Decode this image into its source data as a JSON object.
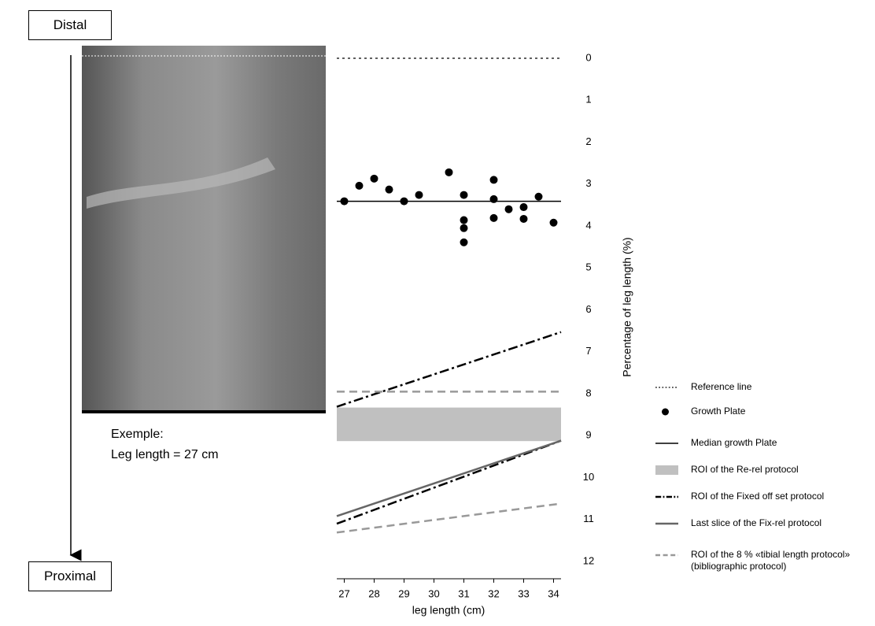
{
  "chart_data": {
    "type": "roi-line",
    "x_label": "leg length (cm)",
    "y_label": "Percentage of leg length (%)",
    "xlim": [
      26.75,
      34.25
    ],
    "ylim": [
      0,
      12
    ],
    "xticks": [
      27,
      28,
      29,
      30,
      31,
      32,
      33,
      34
    ],
    "yticks": [
      0,
      1,
      2,
      3,
      4,
      5,
      6,
      7,
      8,
      9,
      10,
      11,
      12
    ],
    "side_labels": {
      "distal": "Distal",
      "proximal": "Proximal",
      "example_title": "Exemple:",
      "example_text": "Leg length = 27 cm"
    },
    "series": [
      {
        "name": "Reference line",
        "kind": "line",
        "color": "#000000",
        "dash": "3 4",
        "width": 1.2,
        "lines": [
          {
            "x": [
              26.75,
              34.25
            ],
            "values": [
              0,
              0
            ]
          }
        ]
      },
      {
        "name": "Growth Plate",
        "kind": "scatter",
        "color": "#000000",
        "x": [
          27,
          27.5,
          28,
          28.5,
          29,
          29.5,
          30.5,
          31,
          31,
          31,
          31,
          32,
          32,
          32,
          32.5,
          33,
          33,
          33.5,
          34
        ],
        "values": [
          3.41,
          3.04,
          2.87,
          3.13,
          3.41,
          3.26,
          2.72,
          3.26,
          3.86,
          4.05,
          4.39,
          2.9,
          3.36,
          3.81,
          3.6,
          3.55,
          3.83,
          3.3,
          3.92
        ]
      },
      {
        "name": "Median growth Plate",
        "kind": "line",
        "color": "#000000",
        "dash": "",
        "width": 1.5,
        "lines": [
          {
            "x": [
              26.75,
              34.25
            ],
            "values": [
              3.41,
              3.41
            ]
          }
        ]
      },
      {
        "name": "ROI of the Re-rel protocol",
        "kind": "band",
        "color": "#c0c0c0",
        "values": [
          8.33,
          9.13
        ]
      },
      {
        "name": "ROI of the Fixed off set protocol",
        "kind": "line",
        "color": "#000000",
        "dash": "12 4 3 4",
        "width": 2.5,
        "lines": [
          {
            "x": [
              26.75,
              34.25
            ],
            "values": [
              8.31,
              6.53
            ]
          },
          {
            "x": [
              26.75,
              34.25
            ],
            "values": [
              11.1,
              9.12
            ]
          }
        ]
      },
      {
        "name": "Last slice of the Fix-rel protocol",
        "kind": "line",
        "color": "#666666",
        "dash": "",
        "width": 2.5,
        "lines": [
          {
            "x": [
              26.75,
              34.25
            ],
            "values": [
              10.92,
              9.12
            ]
          }
        ]
      },
      {
        "name": "ROI of the 8 % «tibial length protocol» (bibliographic protocol)",
        "kind": "line",
        "color": "#999999",
        "dash": "10 6",
        "width": 2.5,
        "lines": [
          {
            "x": [
              26.75,
              34.25
            ],
            "values": [
              7.95,
              7.95
            ]
          },
          {
            "x": [
              26.75,
              34.25
            ],
            "values": [
              11.31,
              10.62
            ]
          }
        ]
      }
    ]
  }
}
